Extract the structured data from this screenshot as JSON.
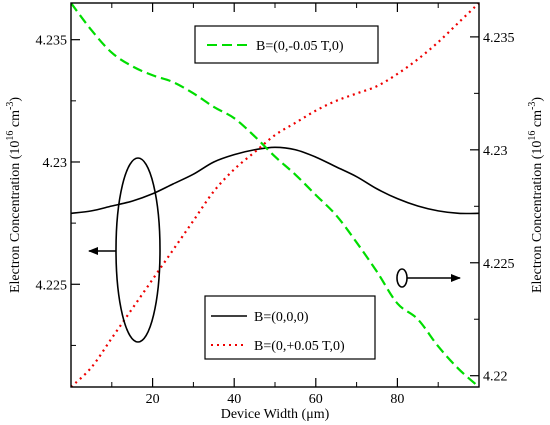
{
  "chart_data": {
    "type": "line",
    "xlabel": "Device Width (μm)",
    "ylabel_left": {
      "text": "Electron Concentration (10",
      "sup": "16",
      "unit": " cm",
      "unit_sup": "-3",
      "close": ")"
    },
    "ylabel_right": {
      "text": "Electron Concentration (10",
      "sup": "16",
      "unit": " cm",
      "unit_sup": "-3",
      "close": ")"
    },
    "xlim": [
      0,
      100
    ],
    "ylim_left": [
      4.2208,
      4.2365
    ],
    "ylim_right": [
      4.2195,
      4.2365
    ],
    "x_ticks": [
      20,
      40,
      60,
      80
    ],
    "x_tick_labels": [
      "20",
      "40",
      "60",
      "80"
    ],
    "y_left_ticks": [
      4.225,
      4.23,
      4.235
    ],
    "y_left_tick_labels": [
      "4.225",
      "4.23",
      "4.235"
    ],
    "y_right_ticks": [
      4.22,
      4.225,
      4.23,
      4.235
    ],
    "y_right_tick_labels": [
      "4.22",
      "4.225",
      "4.23",
      "4.235"
    ],
    "grid": false,
    "series": [
      {
        "name": "B=(0,0,0)",
        "axis": "left",
        "color": "#000000",
        "dash": "solid",
        "x": [
          0,
          5,
          10,
          15,
          20,
          25,
          30,
          35,
          40,
          45,
          50,
          55,
          60,
          65,
          70,
          75,
          80,
          85,
          90,
          95,
          100
        ],
        "y": [
          4.2279,
          4.228,
          4.2282,
          4.2284,
          4.2287,
          4.2291,
          4.2295,
          4.23,
          4.2303,
          4.2305,
          4.2306,
          4.2305,
          4.2302,
          4.2298,
          4.2294,
          4.2289,
          4.2285,
          4.2282,
          4.228,
          4.2279,
          4.2279
        ]
      },
      {
        "name": "B=(0,-0.05 T,0)",
        "axis": "right",
        "color": "#00dd00",
        "dash": "long",
        "x": [
          0,
          5,
          10,
          15,
          20,
          25,
          30,
          35,
          40,
          45,
          50,
          55,
          60,
          65,
          70,
          75,
          80,
          85,
          90,
          95,
          100
        ],
        "y": [
          4.2365,
          4.2353,
          4.2343,
          4.2337,
          4.2333,
          4.233,
          4.2325,
          4.2319,
          4.2314,
          4.2306,
          4.2297,
          4.2289,
          4.228,
          4.2271,
          4.2259,
          4.2246,
          4.2232,
          4.2225,
          4.2213,
          4.2203,
          4.2195
        ]
      },
      {
        "name": "B=(0,+0.05 T,0)",
        "axis": "left",
        "color": "#ee0000",
        "dash": "dotted",
        "x": [
          0,
          5,
          10,
          15,
          20,
          25,
          30,
          35,
          40,
          45,
          50,
          55,
          60,
          65,
          70,
          75,
          80,
          85,
          90,
          95,
          100
        ],
        "y": [
          4.2208,
          4.2216,
          4.2228,
          4.224,
          4.2252,
          4.2264,
          4.2276,
          4.2288,
          4.2297,
          4.2304,
          4.2311,
          4.2316,
          4.2321,
          4.2325,
          4.2328,
          4.2331,
          4.2336,
          4.2342,
          4.2349,
          4.2357,
          4.2365
        ]
      }
    ],
    "legends": [
      {
        "placement": "top-center",
        "entries": [
          "B=(0,-0.05 T,0)"
        ]
      },
      {
        "placement": "bottom-center",
        "entries": [
          "B=(0,0,0)",
          "B=(0,+0.05 T,0)"
        ]
      }
    ],
    "annotations": [
      {
        "type": "ellipse-with-arrow",
        "target_series": "B=(0,0,0)",
        "arrow_direction": "left",
        "meaning": "left axis"
      },
      {
        "type": "ellipse-with-arrow",
        "target_series": "B=(0,-0.05 T,0)",
        "arrow_direction": "right",
        "meaning": "right axis"
      }
    ]
  }
}
